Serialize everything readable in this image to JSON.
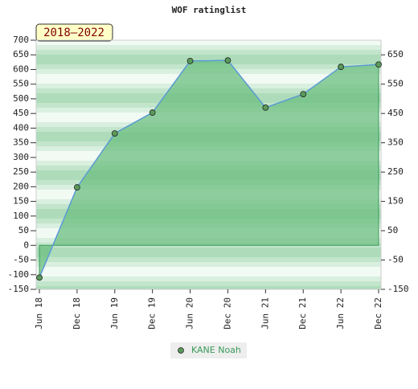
{
  "chart_data": {
    "type": "area",
    "title": "WOF ratinglist",
    "annotation": "2018–2022",
    "categories": [
      "Jun 18",
      "Dec 18",
      "Jun 19",
      "Dec 19",
      "Jun 20",
      "Dec 20",
      "Jun 21",
      "Dec 21",
      "Jun 22",
      "Dec 22"
    ],
    "series": [
      {
        "name": "KANE Noah",
        "color": "#5b9bd5",
        "marker_color": "#5a9a5a",
        "fill": "#6cbf82",
        "values": [
          -110,
          198,
          382,
          453,
          629,
          631,
          470,
          516,
          609,
          617
        ]
      }
    ],
    "ylim": [
      -150,
      700
    ],
    "yticks": [
      -150,
      -100,
      -50,
      0,
      50,
      100,
      150,
      200,
      250,
      300,
      350,
      400,
      450,
      500,
      550,
      600,
      650,
      700
    ],
    "y2lim": [
      -150,
      700
    ],
    "y2ticks": [
      -150,
      -50,
      50,
      150,
      250,
      350,
      450,
      550,
      650
    ],
    "legend": "bottom"
  }
}
